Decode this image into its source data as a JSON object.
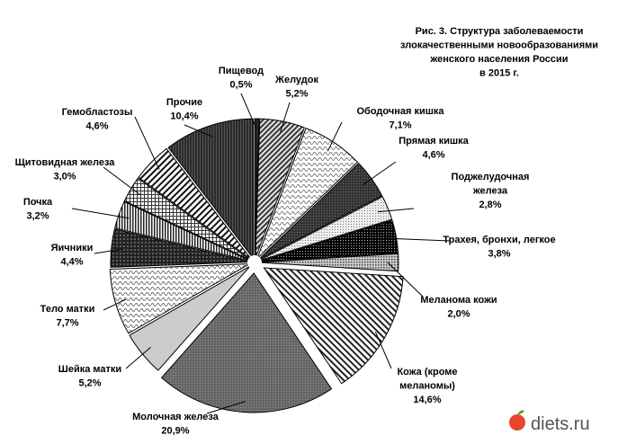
{
  "chart_data": {
    "type": "pie",
    "title": [
      "Рис. 3. Структура заболеваемости",
      "злокачественными новообразованиями",
      "женского населения России",
      "в 2015 г."
    ],
    "unit": "%",
    "start": "top, clockwise",
    "slices": [
      {
        "label": [
          "Пищевод"
        ],
        "value": 0.5,
        "text": "0,5%"
      },
      {
        "label": [
          "Желудок"
        ],
        "value": 5.2,
        "text": "5,2%"
      },
      {
        "label": [
          "Ободочная кишка"
        ],
        "value": 7.1,
        "text": "7,1%"
      },
      {
        "label": [
          "Прямая кишка"
        ],
        "value": 4.6,
        "text": "4,6%"
      },
      {
        "label": [
          "Поджелудочная",
          "железа"
        ],
        "value": 2.8,
        "text": "2,8%"
      },
      {
        "label": [
          "Трахея, бронхи, легкое"
        ],
        "value": 3.8,
        "text": "3,8%"
      },
      {
        "label": [
          "Меланома кожи"
        ],
        "value": 2.0,
        "text": "2,0%"
      },
      {
        "label": [
          "Кожа (кроме",
          "меланомы)"
        ],
        "value": 14.6,
        "text": "14,6%"
      },
      {
        "label": [
          "Молочная железа"
        ],
        "value": 20.9,
        "text": "20,9%"
      },
      {
        "label": [
          "Шейка матки"
        ],
        "value": 5.2,
        "text": "5,2%"
      },
      {
        "label": [
          "Тело матки"
        ],
        "value": 7.7,
        "text": "7,7%"
      },
      {
        "label": [
          "Яичники"
        ],
        "value": 4.4,
        "text": "4,4%"
      },
      {
        "label": [
          "Почка"
        ],
        "value": 3.2,
        "text": "3,2%"
      },
      {
        "label": [
          "Щитовидная железа"
        ],
        "value": 3.0,
        "text": "3,0%"
      },
      {
        "label": [
          "Гемобластозы"
        ],
        "value": 4.6,
        "text": "4,6%"
      },
      {
        "label": [
          "Прочие"
        ],
        "value": 10.4,
        "text": "10,4%"
      }
    ]
  },
  "watermark": "diets.ru"
}
